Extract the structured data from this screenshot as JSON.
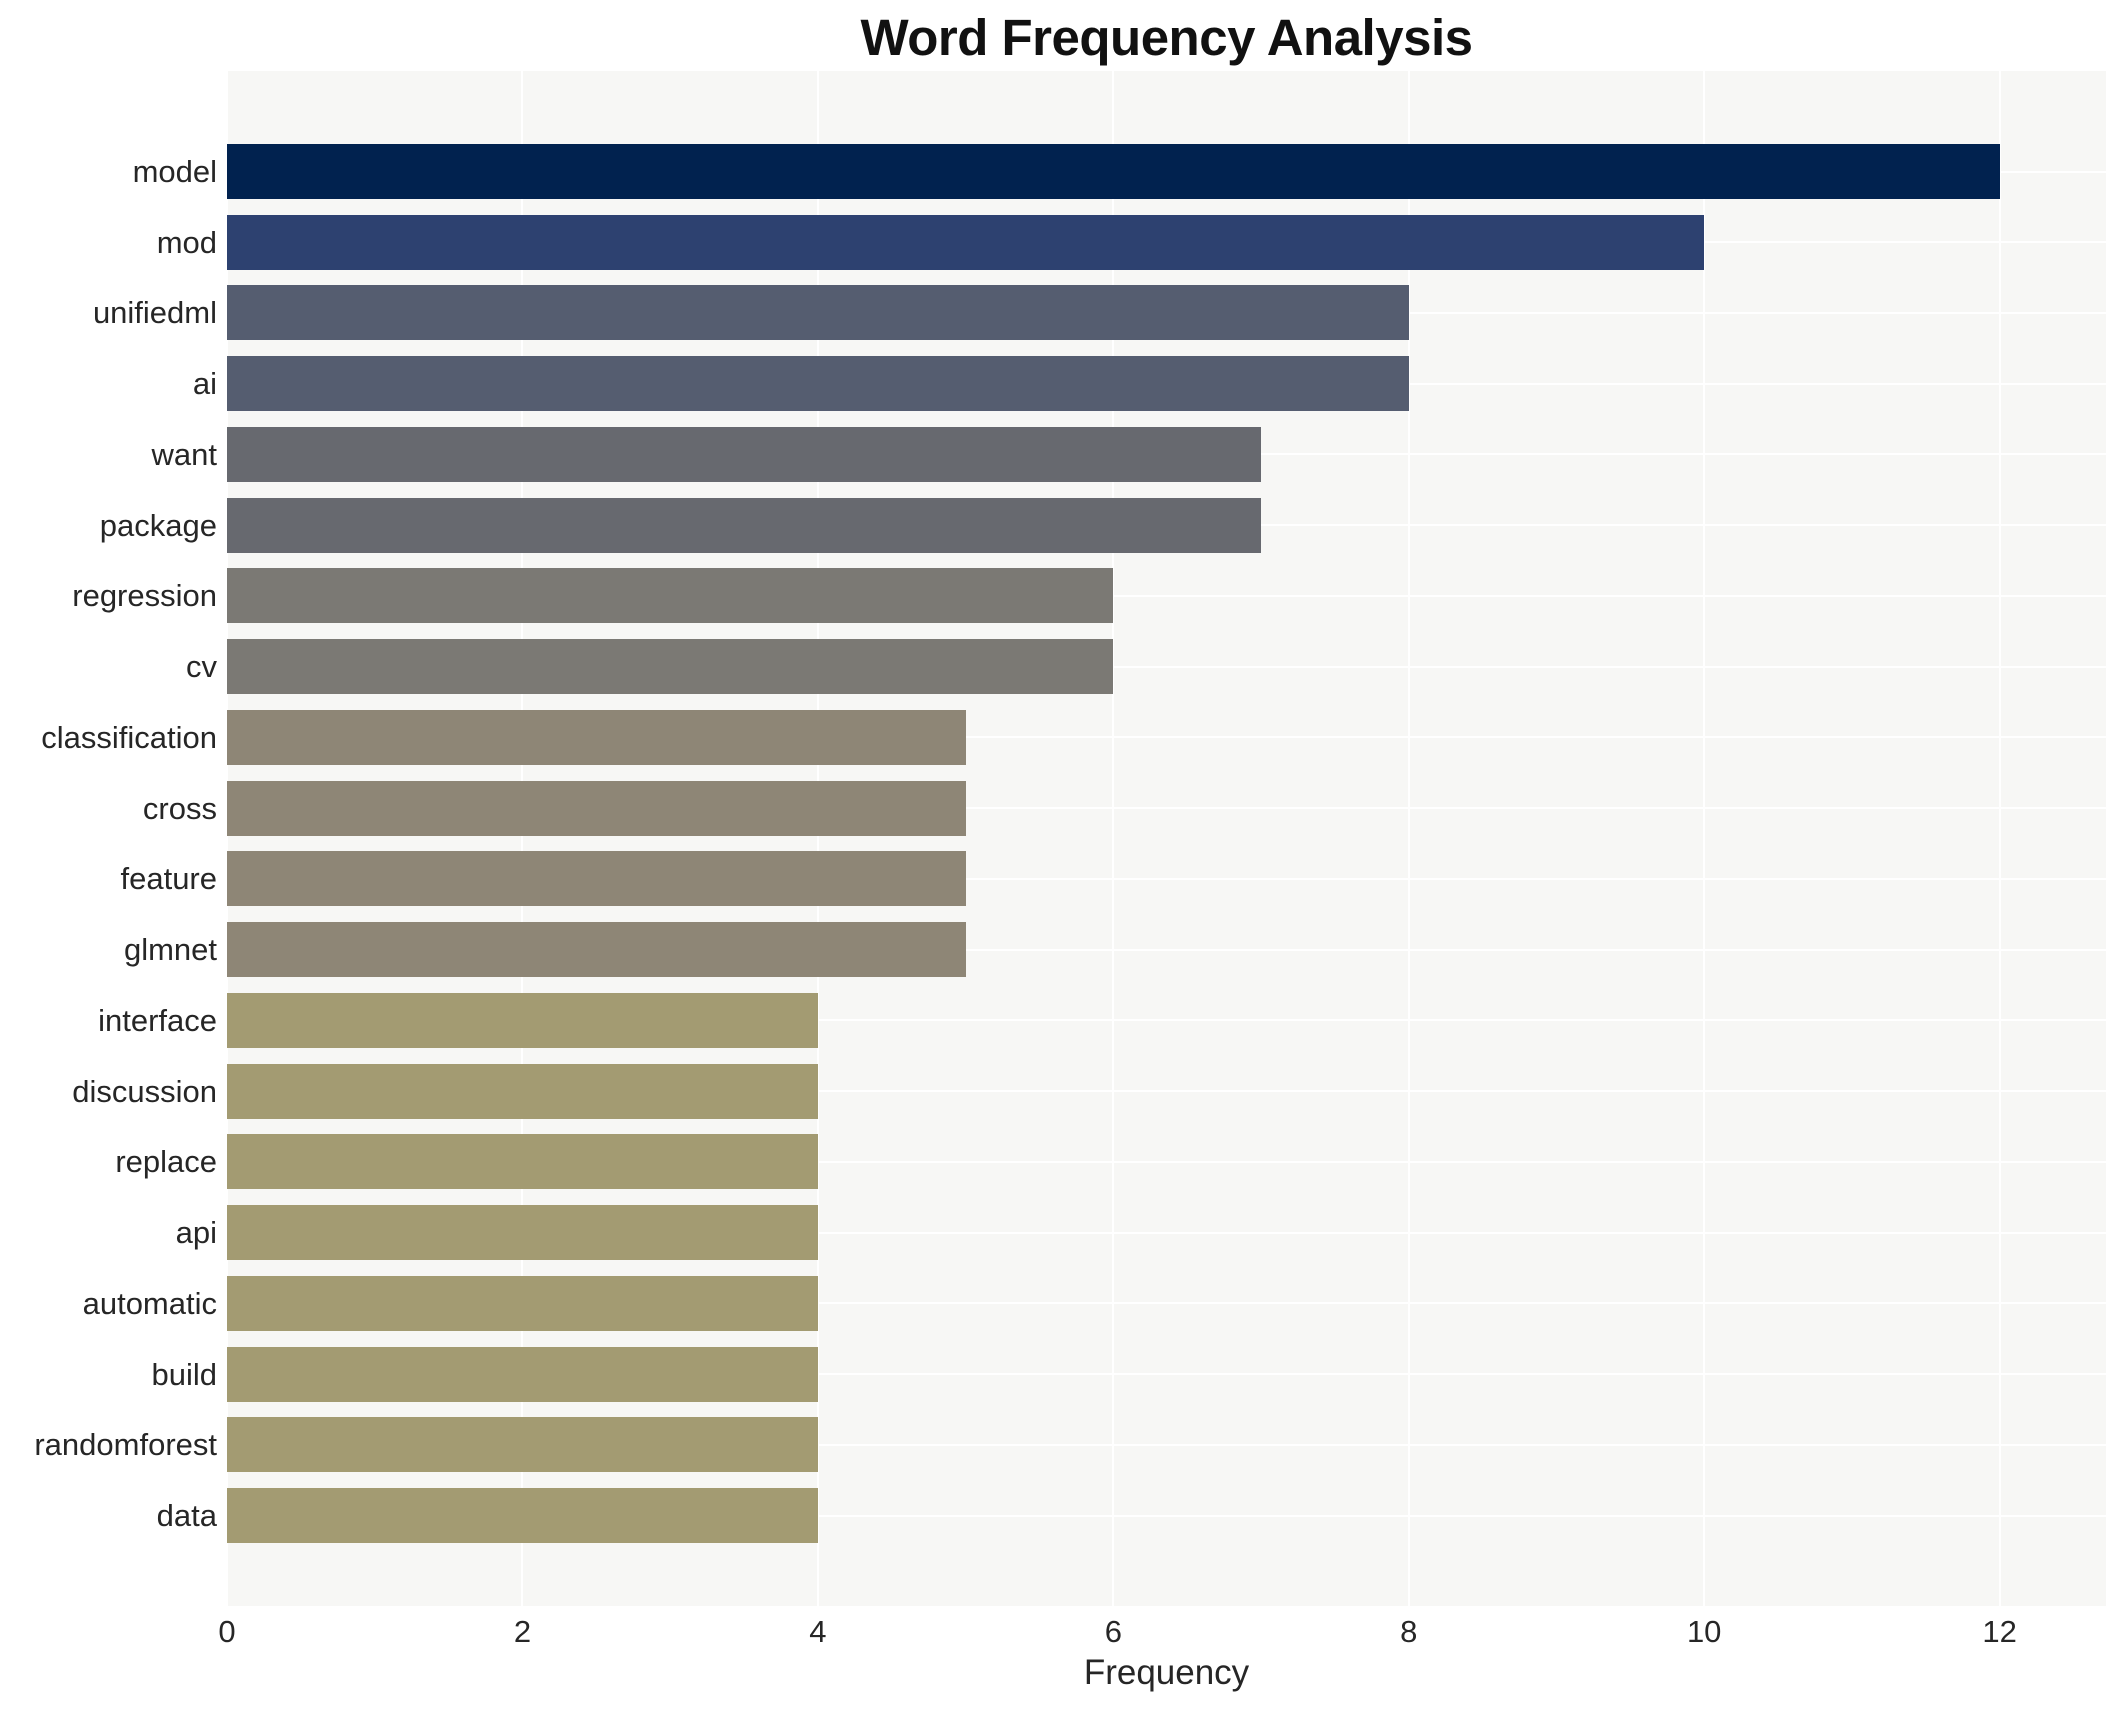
{
  "title": "Word Frequency Analysis",
  "xlabel": "Frequency",
  "chart_data": {
    "type": "bar",
    "orientation": "horizontal",
    "title": "Word Frequency Analysis",
    "xlabel": "Frequency",
    "ylabel": "",
    "categories": [
      "model",
      "mod",
      "unifiedml",
      "ai",
      "want",
      "package",
      "regression",
      "cv",
      "classification",
      "cross",
      "feature",
      "glmnet",
      "interface",
      "discussion",
      "replace",
      "api",
      "automatic",
      "build",
      "randomforest",
      "data"
    ],
    "values": [
      12,
      10,
      8,
      8,
      7,
      7,
      6,
      6,
      5,
      5,
      5,
      5,
      4,
      4,
      4,
      4,
      4,
      4,
      4,
      4
    ],
    "bar_colors": [
      "#01224f",
      "#2d4170",
      "#555d70",
      "#555d70",
      "#67696f",
      "#67696f",
      "#7b7974",
      "#7b7974",
      "#8e8676",
      "#8e8676",
      "#8e8676",
      "#8e8676",
      "#a39b72",
      "#a39b72",
      "#a39b72",
      "#a39b72",
      "#a39b72",
      "#a39b72",
      "#a39b72",
      "#a39b72"
    ],
    "xticks": [
      0,
      2,
      4,
      6,
      8,
      10,
      12
    ],
    "xlim": [
      0,
      12.72
    ],
    "grid": true,
    "legend": false,
    "plot_bg_color": "#f7f7f5",
    "grid_color": "#ffffff"
  }
}
